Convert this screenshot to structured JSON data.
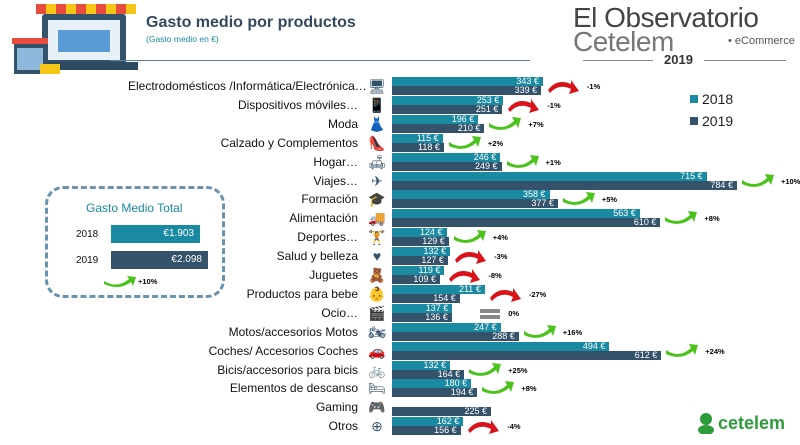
{
  "header": {
    "title": "Gasto medio por productos",
    "subtitle": "(Gasto medio en €)"
  },
  "brand": {
    "line1": "El Observatorio",
    "line2": "Cetelem",
    "tag": "• eCommerce",
    "year": "2019",
    "footer_logo": "cetelem"
  },
  "legend": [
    {
      "label": "2018",
      "color": "#1a8aa3"
    },
    {
      "label": "2019",
      "color": "#34536b"
    }
  ],
  "total": {
    "title": "Gasto Medio Total",
    "rows": [
      {
        "year": "2018",
        "value": 1903,
        "label": "€1.903",
        "color": "#1a8aa3"
      },
      {
        "year": "2019",
        "value": 2098,
        "label": "€2.098",
        "color": "#34536b"
      }
    ],
    "change": "+10%",
    "trend": "up"
  },
  "chart_data": {
    "type": "bar",
    "orientation": "horizontal",
    "title": "Gasto medio por productos",
    "subtitle": "(Gasto medio en €)",
    "unit": "€",
    "legend_position": "top-right",
    "xlim": [
      0,
      800
    ],
    "series_names": [
      "2018",
      "2019"
    ],
    "categories": [
      {
        "label": "Electrodomésticos /Informática/Electrónica…",
        "icon": "computer-icon",
        "glyph": "🖥",
        "v2018": 343,
        "v2019": 339,
        "change": "-1%",
        "trend": "down"
      },
      {
        "label": "Dispositivos móviles…",
        "icon": "smartphone-icon",
        "glyph": "📱",
        "v2018": 253,
        "v2019": 251,
        "change": "-1%",
        "trend": "down"
      },
      {
        "label": "Moda",
        "icon": "dress-icon",
        "glyph": "👗",
        "v2018": 196,
        "v2019": 210,
        "change": "+7%",
        "trend": "up"
      },
      {
        "label": "Calzado y Complementos",
        "icon": "high-heel-icon",
        "glyph": "👠",
        "v2018": 115,
        "v2019": 118,
        "change": "+2%",
        "trend": "up"
      },
      {
        "label": "Hogar…",
        "icon": "sofa-icon",
        "glyph": "🛋",
        "v2018": 246,
        "v2019": 249,
        "change": "+1%",
        "trend": "up"
      },
      {
        "label": "Viajes…",
        "icon": "airplane-icon",
        "glyph": "✈",
        "v2018": 715,
        "v2019": 784,
        "change": "+10%",
        "trend": "up"
      },
      {
        "label": "Formación",
        "icon": "graduation-cap-icon",
        "glyph": "🎓",
        "v2018": 358,
        "v2019": 377,
        "change": "+5%",
        "trend": "up"
      },
      {
        "label": "Alimentación",
        "icon": "food-truck-icon",
        "glyph": "🚚",
        "v2018": 563,
        "v2019": 610,
        "change": "+8%",
        "trend": "up"
      },
      {
        "label": "Deportes…",
        "icon": "athlete-icon",
        "glyph": "🏋",
        "v2018": 124,
        "v2019": 129,
        "change": "+4%",
        "trend": "up"
      },
      {
        "label": "Salud y belleza",
        "icon": "heart-check-icon",
        "glyph": "♥",
        "v2018": 132,
        "v2019": 127,
        "change": "-3%",
        "trend": "down"
      },
      {
        "label": "Juguetes",
        "icon": "teddy-bear-icon",
        "glyph": "🧸",
        "v2018": 119,
        "v2019": 109,
        "change": "-8%",
        "trend": "down"
      },
      {
        "label": "Productos para bebe",
        "icon": "baby-icon",
        "glyph": "👶",
        "v2018": 211,
        "v2019": 154,
        "change": "-27%",
        "trend": "down"
      },
      {
        "label": "Ocio…",
        "icon": "clapperboard-icon",
        "glyph": "🎬",
        "v2018": 137,
        "v2019": 136,
        "change": "0%",
        "trend": "equal"
      },
      {
        "label": "Motos/accesorios Motos",
        "icon": "motorcycle-icon",
        "glyph": "🏍",
        "v2018": 247,
        "v2019": 288,
        "change": "+16%",
        "trend": "up"
      },
      {
        "label": "Coches/ Accesorios Coches",
        "icon": "car-icon",
        "glyph": "🚗",
        "v2018": 494,
        "v2019": 612,
        "change": "+24%",
        "trend": "up"
      },
      {
        "label": "Bicis/accesorios para bicis",
        "icon": "bicycle-icon",
        "glyph": "🚲",
        "v2018": 132,
        "v2019": 164,
        "change": "+25%",
        "trend": "up"
      },
      {
        "label": "Elementos de descanso",
        "icon": "bed-icon",
        "glyph": "🛏",
        "v2018": 180,
        "v2019": 194,
        "change": "+8%",
        "trend": "up"
      },
      {
        "label": "Gaming",
        "icon": "gamepad-icon",
        "glyph": "🎮",
        "v2018": null,
        "v2019": 225,
        "change": "",
        "trend": "none"
      },
      {
        "label": "Otros",
        "icon": "plus-circle-icon",
        "glyph": "⊕",
        "v2018": 162,
        "v2019": 156,
        "change": "-4%",
        "trend": "down"
      }
    ]
  }
}
